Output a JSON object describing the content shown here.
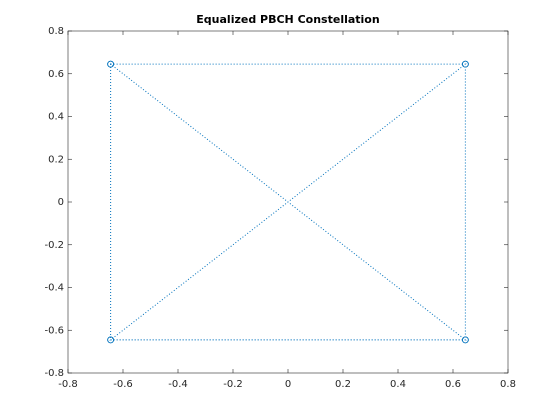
{
  "chart_data": {
    "type": "line",
    "title": "Equalized PBCH Constellation",
    "x": [
      -0.645,
      0.645,
      -0.645,
      0.645,
      -0.645,
      -0.645,
      0.645,
      0.645
    ],
    "values": [
      0.645,
      0.645,
      -0.645,
      -0.645,
      0.645,
      -0.645,
      -0.645,
      0.645
    ],
    "color": "#0072bd",
    "marker": "o",
    "line_style": "dotted",
    "xlim": [
      -0.8,
      0.8
    ],
    "ylim": [
      -0.8,
      0.8
    ],
    "xticks": [
      -0.8,
      -0.6,
      -0.4,
      -0.2,
      0,
      0.2,
      0.4,
      0.6,
      0.8
    ],
    "yticks": [
      -0.8,
      -0.6,
      -0.4,
      -0.2,
      0,
      0.2,
      0.4,
      0.6,
      0.8
    ],
    "grid": false
  }
}
